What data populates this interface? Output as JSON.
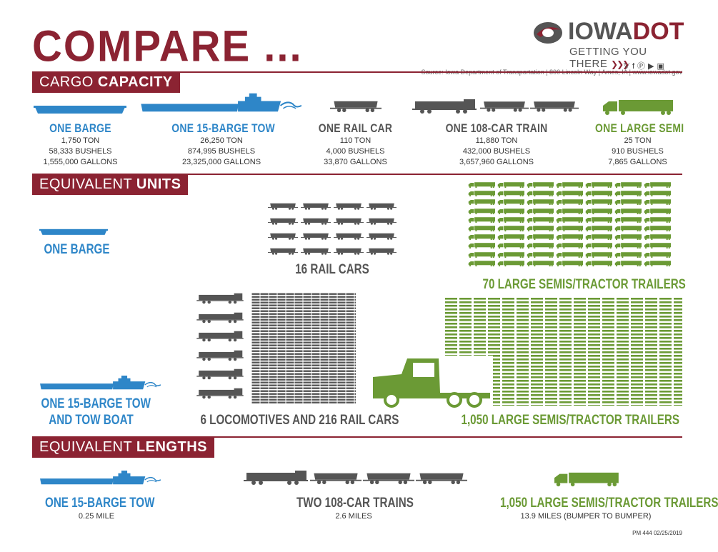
{
  "header": {
    "title": "COMPARE ...",
    "logo_text_a": "IOWA",
    "logo_text_b": "DOT",
    "tagline": "GETTING YOU THERE",
    "social_icons": [
      "twitter-icon",
      "facebook-icon",
      "pinterest-icon",
      "youtube-icon",
      "instagram-icon"
    ],
    "source": "Source: Iowa Department of Transportation  |  800 Lincoln Way  |  Ames, IA  |  www.iowadot.gov"
  },
  "colors": {
    "brand": "#8b2332",
    "barge_blue": "#2e86c8",
    "rail_gray": "#555555",
    "semi_green": "#6b9a35"
  },
  "sections": {
    "cargo": {
      "label_a": "CARGO ",
      "label_b": "CAPACITY"
    },
    "units": {
      "label_a": "EQUIVALENT ",
      "label_b": "UNITS"
    },
    "lengths": {
      "label_a": "EQUIVALENT ",
      "label_b": "LENGTHS"
    }
  },
  "cargo": [
    {
      "name": "ONE BARGE",
      "ton": "1,750 TON",
      "bushels": "58,333 BUSHELS",
      "gallons": "1,555,000 GALLONS"
    },
    {
      "name": "ONE 15-BARGE TOW",
      "ton": "26,250 TON",
      "bushels": "874,995 BUSHELS",
      "gallons": "23,325,000 GALLONS"
    },
    {
      "name": "ONE RAIL CAR",
      "ton": "110 TON",
      "bushels": "4,000 BUSHELS",
      "gallons": "33,870 GALLONS"
    },
    {
      "name": "ONE 108-CAR TRAIN",
      "ton": "11,880 TON",
      "bushels": "432,000 BUSHELS",
      "gallons": "3,657,960 GALLONS"
    },
    {
      "name": "ONE LARGE SEMI",
      "ton": "25 TON",
      "bushels": "910 BUSHELS",
      "gallons": "7,865 GALLONS"
    }
  ],
  "units": {
    "barge": "ONE BARGE",
    "railcars": "16 RAIL CARS",
    "semis": "70 LARGE SEMIS/TRACTOR TRAILERS",
    "tow_line1": "ONE 15-BARGE TOW",
    "tow_line2": "AND TOW BOAT",
    "locos": "6 LOCOMOTIVES AND 216 RAIL CARS",
    "semis_big": "1,050 LARGE SEMIS/TRACTOR TRAILERS"
  },
  "lengths": [
    {
      "name": "ONE 15-BARGE TOW",
      "value": "0.25 MILE"
    },
    {
      "name": "TWO 108-CAR TRAINS",
      "value": "2.6 MILES"
    },
    {
      "name": "1,050 LARGE SEMIS/TRACTOR TRAILERS",
      "value": "13.9 MILES (BUMPER TO BUMPER)"
    }
  ],
  "footer": {
    "code": "PM 444 02/25/2019"
  }
}
